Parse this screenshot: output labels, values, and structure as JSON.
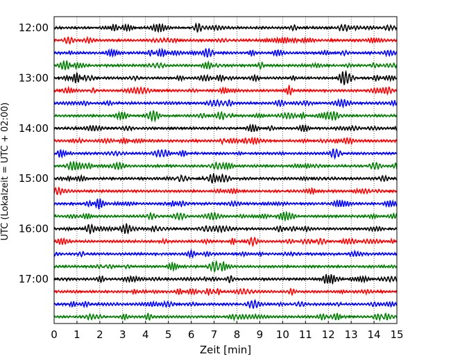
{
  "chart_data": {
    "type": "line",
    "title": "",
    "xlabel": "Zeit  [min]",
    "ylabel": "UTC (Lokalzeit = UTC + 02:00)",
    "xlim": [
      0,
      15
    ],
    "x_ticks": [
      "0",
      "1",
      "2",
      "3",
      "4",
      "5",
      "6",
      "7",
      "8",
      "9",
      "10",
      "11",
      "12",
      "13",
      "14",
      "15"
    ],
    "y_ticks": [
      "12:00",
      "13:00",
      "14:00",
      "15:00",
      "16:00",
      "17:00"
    ],
    "grid": "vertical dotted",
    "row_interval_min": 15,
    "rows_per_hour": 4,
    "row_colors": [
      "#000000",
      "#ff0000",
      "#0000ff",
      "#008000"
    ],
    "rows": [
      {
        "start": "12:00",
        "color": "#000000"
      },
      {
        "start": "12:15",
        "color": "#ff0000"
      },
      {
        "start": "12:30",
        "color": "#0000ff"
      },
      {
        "start": "12:45",
        "color": "#008000"
      },
      {
        "start": "13:00",
        "color": "#000000"
      },
      {
        "start": "13:15",
        "color": "#ff0000"
      },
      {
        "start": "13:30",
        "color": "#0000ff"
      },
      {
        "start": "13:45",
        "color": "#008000"
      },
      {
        "start": "14:00",
        "color": "#000000"
      },
      {
        "start": "14:15",
        "color": "#ff0000"
      },
      {
        "start": "14:30",
        "color": "#0000ff"
      },
      {
        "start": "14:45",
        "color": "#008000"
      },
      {
        "start": "15:00",
        "color": "#000000"
      },
      {
        "start": "15:15",
        "color": "#ff0000"
      },
      {
        "start": "15:30",
        "color": "#0000ff"
      },
      {
        "start": "15:45",
        "color": "#008000"
      },
      {
        "start": "16:00",
        "color": "#000000"
      },
      {
        "start": "16:15",
        "color": "#ff0000"
      },
      {
        "start": "16:30",
        "color": "#0000ff"
      },
      {
        "start": "16:45",
        "color": "#008000"
      },
      {
        "start": "17:00",
        "color": "#000000"
      },
      {
        "start": "17:15",
        "color": "#ff0000"
      },
      {
        "start": "17:30",
        "color": "#0000ff"
      },
      {
        "start": "17:45",
        "color": "#008000"
      }
    ]
  }
}
